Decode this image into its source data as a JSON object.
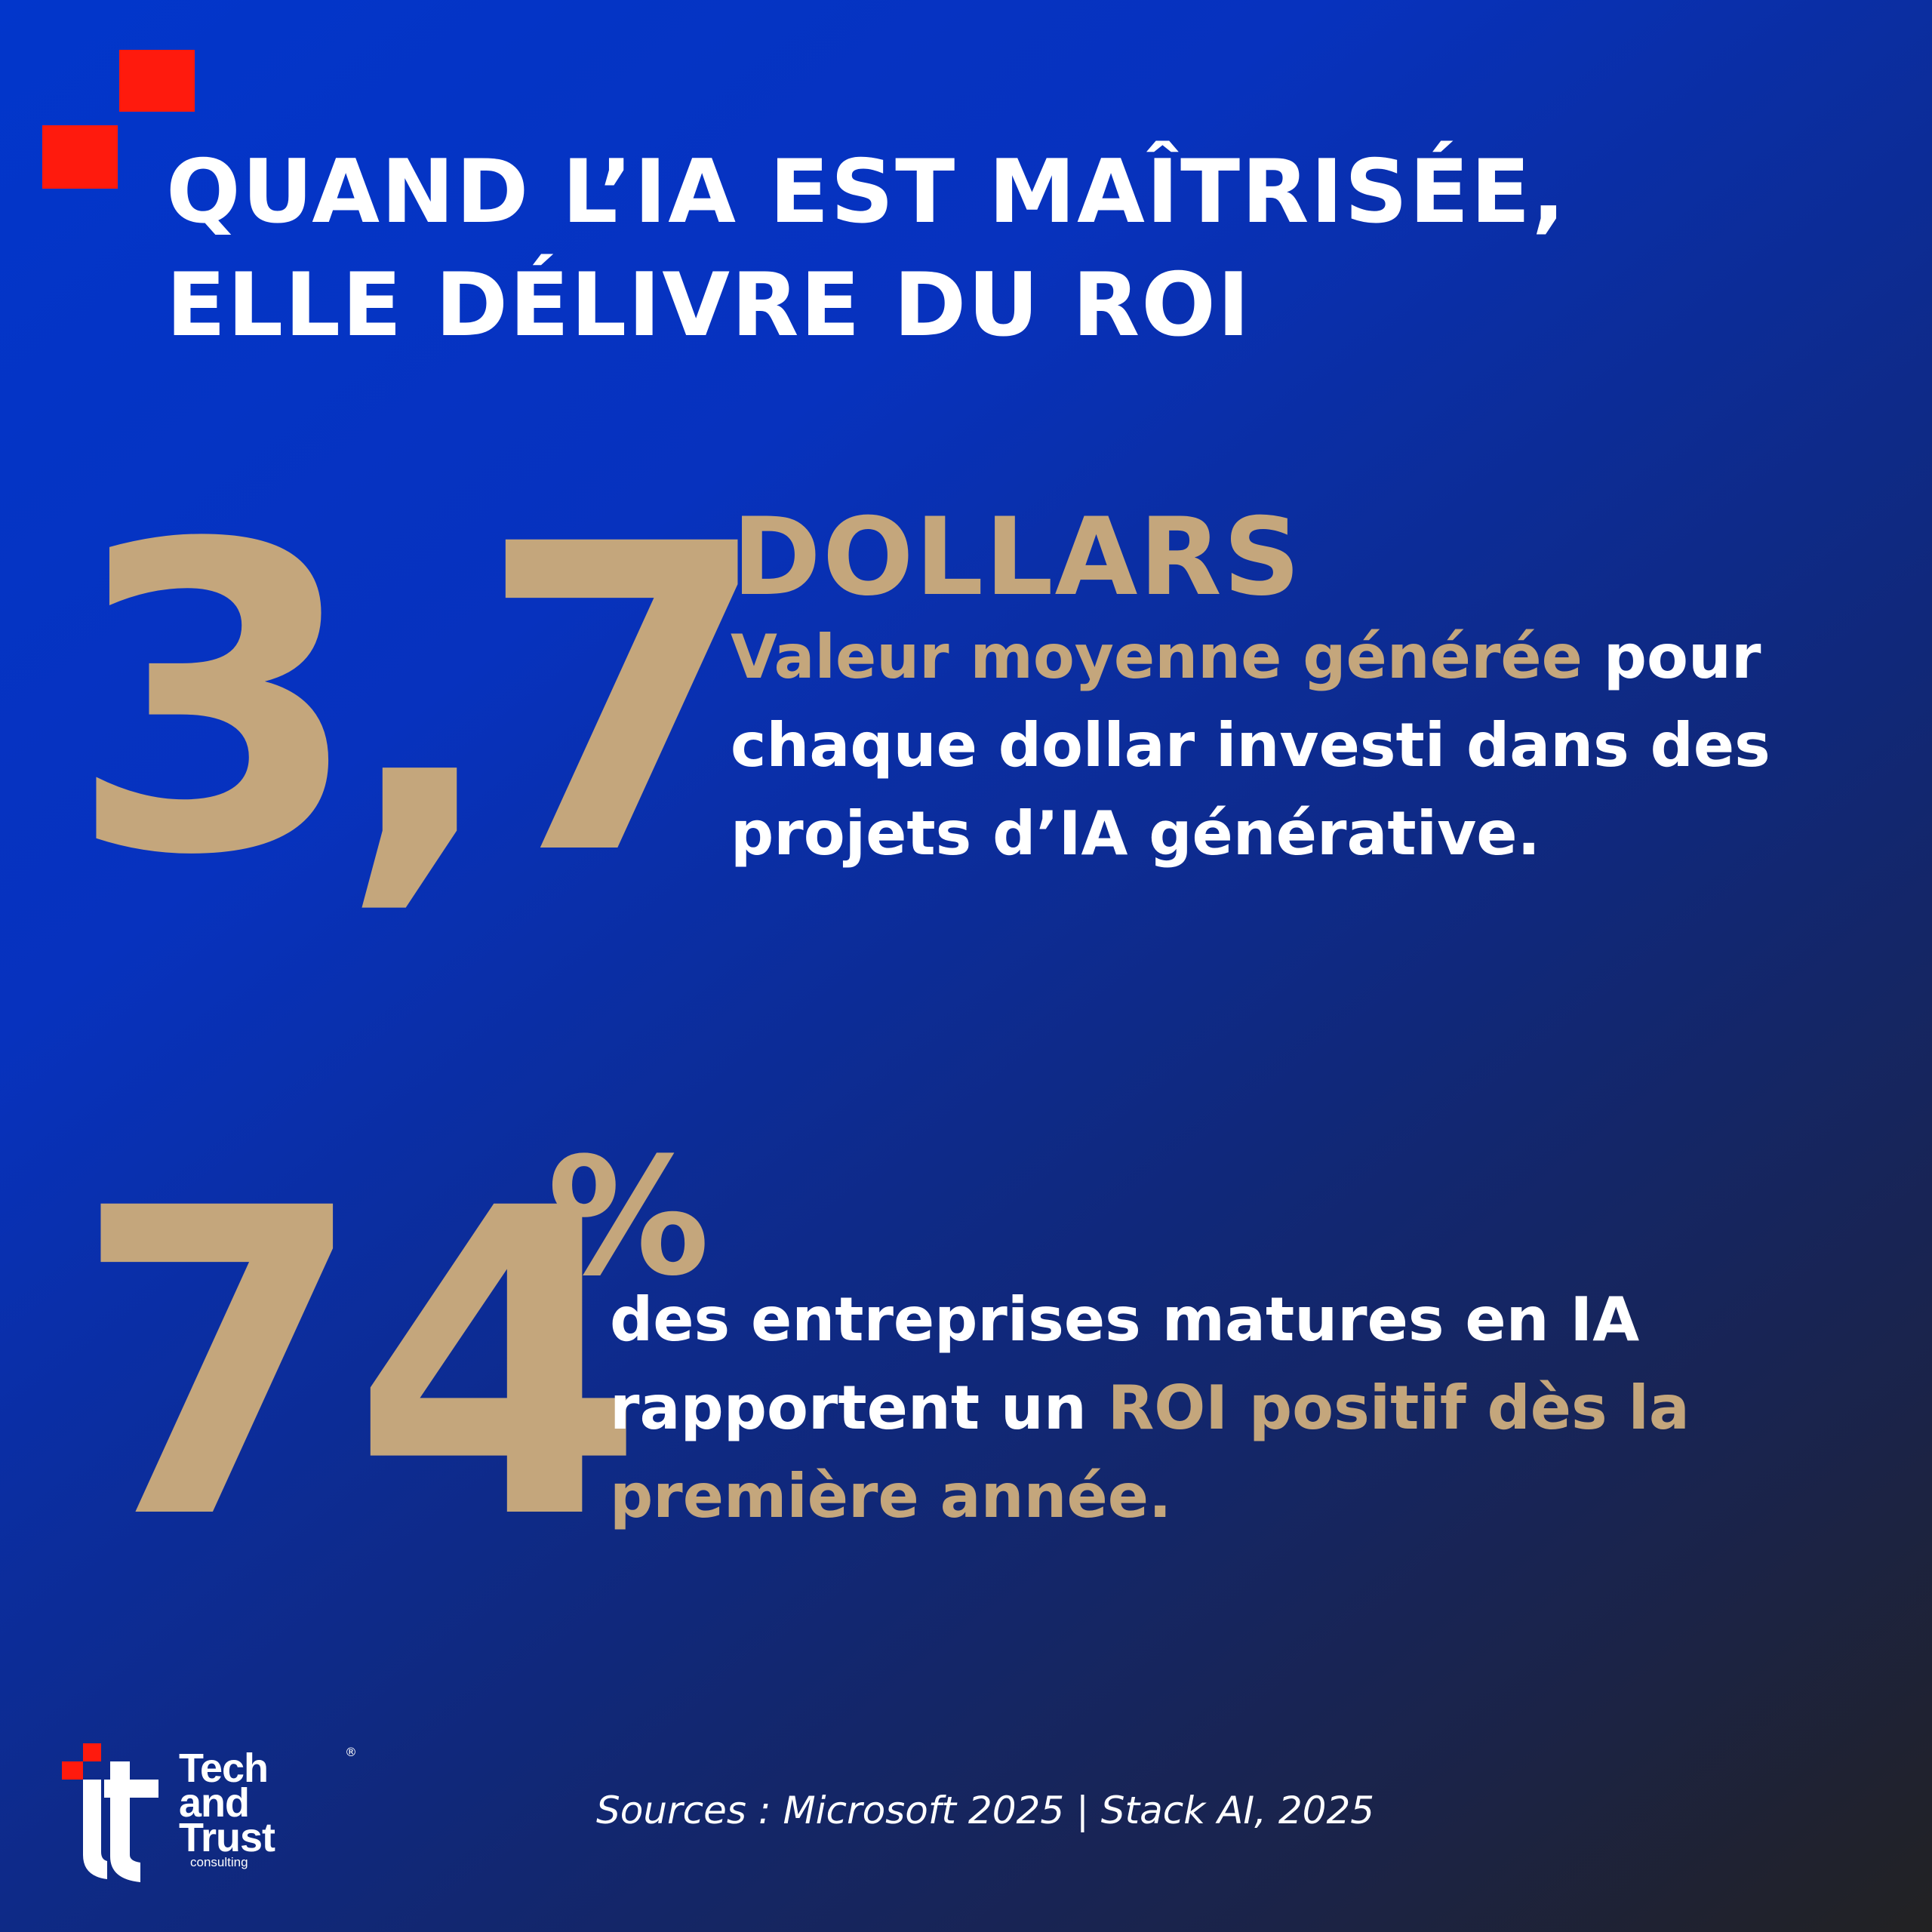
{
  "header": {
    "title": "QUAND L’IA EST MAÎTRISÉE, ELLE DÉLIVRE DU ROI"
  },
  "stat1": {
    "value": "3,7",
    "unit": "DOLLARS",
    "highlight": "Valeur moyenne générée",
    "text": " pour chaque dollar investi dans des projets d’IA générative."
  },
  "stat2": {
    "value": "74",
    "unit": "%",
    "text": "des entreprises matures en IA rapportent un ",
    "highlight": "ROI positif dès la première année."
  },
  "footer": {
    "sources": "Sources : Microsoft 2025 | Stack AI, 2025"
  },
  "logo": {
    "line1": "Tech",
    "line2": "and",
    "line3": "Trust",
    "sub": "consulting",
    "registered": "®"
  },
  "colors": {
    "accent_gold": "#c4a67c",
    "accent_red": "#ff1a0d",
    "background_top": "#0236cb",
    "background_bottom": "#222222"
  }
}
